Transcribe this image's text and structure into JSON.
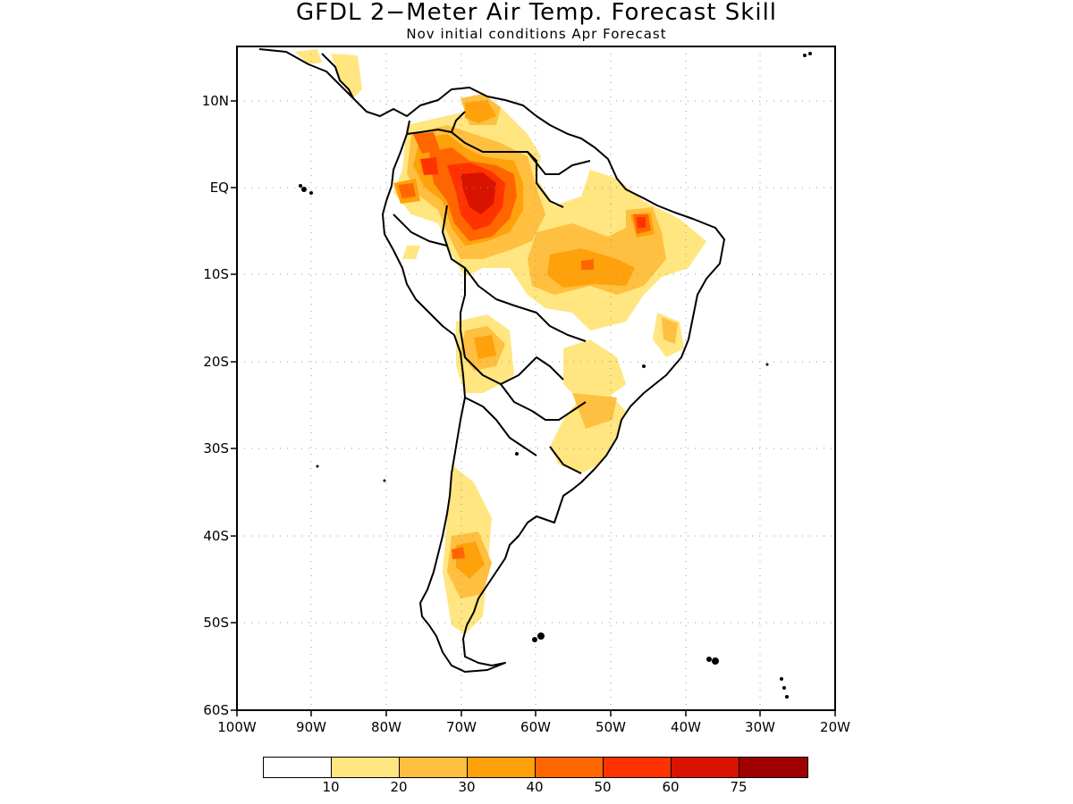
{
  "header": {
    "title": "GFDL 2−Meter Air Temp. Forecast Skill",
    "subtitle": "Nov initial conditions  Apr Forecast"
  },
  "map": {
    "region": "South America",
    "lon_range": [
      -100,
      -20
    ],
    "lat_range": [
      -60,
      15
    ],
    "gridlines": "dotted",
    "land_outline_color": "#000000",
    "y_ticks": [
      "10N",
      "EQ",
      "10S",
      "20S",
      "30S",
      "40S",
      "50S",
      "60S"
    ],
    "x_ticks": [
      "100W",
      "90W",
      "80W",
      "70W",
      "60W",
      "50W",
      "40W",
      "30W",
      "20W"
    ]
  },
  "legend": {
    "colors": [
      "#ffffff",
      "#ffe680",
      "#ffbf40",
      "#ffa10b",
      "#ff6600",
      "#ff3300",
      "#d81400",
      "#a00000"
    ],
    "labels": [
      "10",
      "20",
      "30",
      "40",
      "50",
      "60",
      "75"
    ]
  }
}
